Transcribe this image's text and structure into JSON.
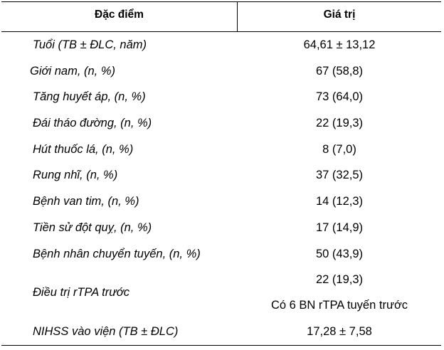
{
  "table": {
    "headers": {
      "characteristic": "Đặc điểm",
      "value": "Giá trị"
    },
    "rows": [
      {
        "label": "Tuổi (TB ± ĐLC, năm)",
        "value": "64,61 ± 13,12"
      },
      {
        "label": "Giới nam, (n, %)",
        "value": "67 (58,8)"
      },
      {
        "label": "Tăng huyết áp, (n, %)",
        "value": "73 (64,0)"
      },
      {
        "label": "Đái tháo đường, (n, %)",
        "value": "22 (19,3)"
      },
      {
        "label": "Hút thuốc lá, (n, %)",
        "value": "8 (7,0)"
      },
      {
        "label": "Rung nhĩ, (n, %)",
        "value": "37 (32,5)"
      },
      {
        "label": "Bệnh van tim, (n, %)",
        "value": "14 (12,3)"
      },
      {
        "label": "Tiền sử đột quỵ, (n, %)",
        "value": "17 (14,9)"
      },
      {
        "label": "Bệnh nhân chuyển tuyến, (n, %)",
        "value": "50 (43,9)"
      },
      {
        "label": "Điều trị rTPA trước",
        "value": "22 (19,3)",
        "note": "Có 6 BN rTPA tuyến trước"
      },
      {
        "label": "NIHSS vào viện (TB ± ĐLC)",
        "value": "17,28 ± 7,58"
      }
    ]
  }
}
